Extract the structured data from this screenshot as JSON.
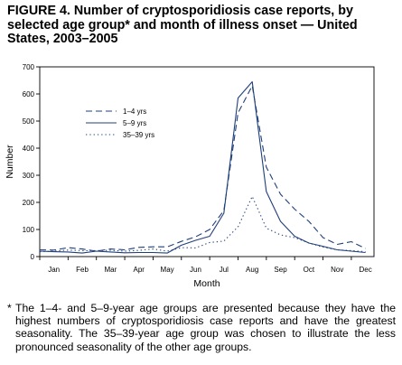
{
  "figure": {
    "title": "FIGURE 4. Number of cryptosporidiosis case reports, by selected age group* and month of illness onset — United States, 2003–2005",
    "footnote_marker": "*",
    "footnote": "The 1–4- and 5–9-year age groups are presented because they have the highest numbers of cryptosporidiosis case reports and have the greatest seasonality. The 35–39-year age group was chosen to illustrate the less pronounced seasonality of the other age groups."
  },
  "chart_data": {
    "type": "line",
    "categories": [
      "Jan",
      "Feb",
      "Mar",
      "Apr",
      "May",
      "Jun",
      "Jul",
      "Aug",
      "Sep",
      "Oct",
      "Nov",
      "Dec"
    ],
    "xlabel": "Month",
    "ylabel": "Number",
    "ylim": [
      0,
      700
    ],
    "yticks": [
      0,
      100,
      200,
      300,
      400,
      500,
      600,
      700
    ],
    "legend_position": "upper-left",
    "grid": false,
    "series": [
      {
        "name": "1–4 yrs",
        "style": "dashed",
        "color": "#1f3f7a",
        "x": [
          0.5,
          1,
          1.5,
          2,
          2.5,
          3,
          3.5,
          4,
          4.5,
          5,
          5.5,
          6,
          6.5,
          7,
          7.5,
          8,
          8.5,
          9,
          9.5,
          10,
          10.5,
          11,
          11.5,
          12
        ],
        "y": [
          25,
          24,
          33,
          28,
          20,
          28,
          25,
          34,
          36,
          36,
          56,
          73,
          100,
          170,
          530,
          630,
          330,
          230,
          175,
          130,
          70,
          45,
          55,
          30
        ]
      },
      {
        "name": "5–9 yrs",
        "style": "solid",
        "color": "#1f3f7a",
        "x": [
          0.5,
          1,
          1.5,
          2,
          2.5,
          3,
          3.5,
          4,
          4.5,
          5,
          5.5,
          6,
          6.5,
          7,
          7.5,
          8,
          8.5,
          9,
          9.5,
          10,
          10.5,
          11,
          11.5,
          12
        ],
        "y": [
          20,
          18,
          17,
          13,
          20,
          17,
          14,
          15,
          15,
          13,
          42,
          60,
          75,
          160,
          585,
          645,
          240,
          130,
          75,
          50,
          38,
          25,
          20,
          15
        ]
      },
      {
        "name": "35–39 yrs",
        "style": "dotted",
        "color": "#1f3f7a",
        "x": [
          0.5,
          1,
          1.5,
          2,
          2.5,
          3,
          3.5,
          4,
          4.5,
          5,
          5.5,
          6,
          6.5,
          7,
          7.5,
          8,
          8.5,
          9,
          9.5,
          10,
          10.5,
          11,
          11.5,
          12
        ],
        "y": [
          18,
          20,
          24,
          22,
          22,
          23,
          20,
          23,
          28,
          20,
          33,
          32,
          52,
          57,
          110,
          222,
          105,
          80,
          70,
          50,
          35,
          25,
          22,
          18
        ]
      }
    ]
  }
}
